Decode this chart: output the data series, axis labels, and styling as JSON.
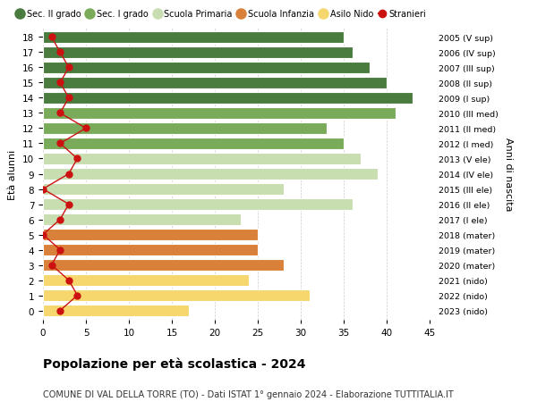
{
  "ages": [
    18,
    17,
    16,
    15,
    14,
    13,
    12,
    11,
    10,
    9,
    8,
    7,
    6,
    5,
    4,
    3,
    2,
    1,
    0
  ],
  "bar_values": [
    35,
    36,
    38,
    40,
    43,
    41,
    33,
    35,
    37,
    39,
    28,
    36,
    23,
    25,
    25,
    28,
    24,
    31,
    17
  ],
  "bar_colors": [
    "#4a7c3f",
    "#4a7c3f",
    "#4a7c3f",
    "#4a7c3f",
    "#4a7c3f",
    "#7aab5a",
    "#7aab5a",
    "#7aab5a",
    "#c8ddb0",
    "#c8ddb0",
    "#c8ddb0",
    "#c8ddb0",
    "#c8ddb0",
    "#d9813a",
    "#d9813a",
    "#d9813a",
    "#f5d76e",
    "#f5d76e",
    "#f5d76e"
  ],
  "stranieri_values": [
    1,
    2,
    3,
    2,
    3,
    2,
    5,
    2,
    4,
    3,
    0,
    3,
    2,
    0,
    2,
    1,
    3,
    4,
    2
  ],
  "right_labels": [
    "2005 (V sup)",
    "2006 (IV sup)",
    "2007 (III sup)",
    "2008 (II sup)",
    "2009 (I sup)",
    "2010 (III med)",
    "2011 (II med)",
    "2012 (I med)",
    "2013 (V ele)",
    "2014 (IV ele)",
    "2015 (III ele)",
    "2016 (II ele)",
    "2017 (I ele)",
    "2018 (mater)",
    "2019 (mater)",
    "2020 (mater)",
    "2021 (nido)",
    "2022 (nido)",
    "2023 (nido)"
  ],
  "ylabel": "Età alunni",
  "right_ylabel": "Anni di nascita",
  "xlim": [
    0,
    45
  ],
  "xticks": [
    0,
    5,
    10,
    15,
    20,
    25,
    30,
    35,
    40,
    45
  ],
  "title": "Popolazione per età scolastica - 2024",
  "subtitle": "COMUNE DI VAL DELLA TORRE (TO) - Dati ISTAT 1° gennaio 2024 - Elaborazione TUTTITALIA.IT",
  "legend_labels": [
    "Sec. II grado",
    "Sec. I grado",
    "Scuola Primaria",
    "Scuola Infanzia",
    "Asilo Nido",
    "Stranieri"
  ],
  "legend_colors": [
    "#4a7c3f",
    "#7aab5a",
    "#c8ddb0",
    "#d9813a",
    "#f5d76e",
    "#cc1111"
  ],
  "bar_height": 0.78,
  "bg_color": "#ffffff",
  "grid_color": "#cccccc",
  "stranieri_color": "#cc1111",
  "stranieri_markersize": 5
}
